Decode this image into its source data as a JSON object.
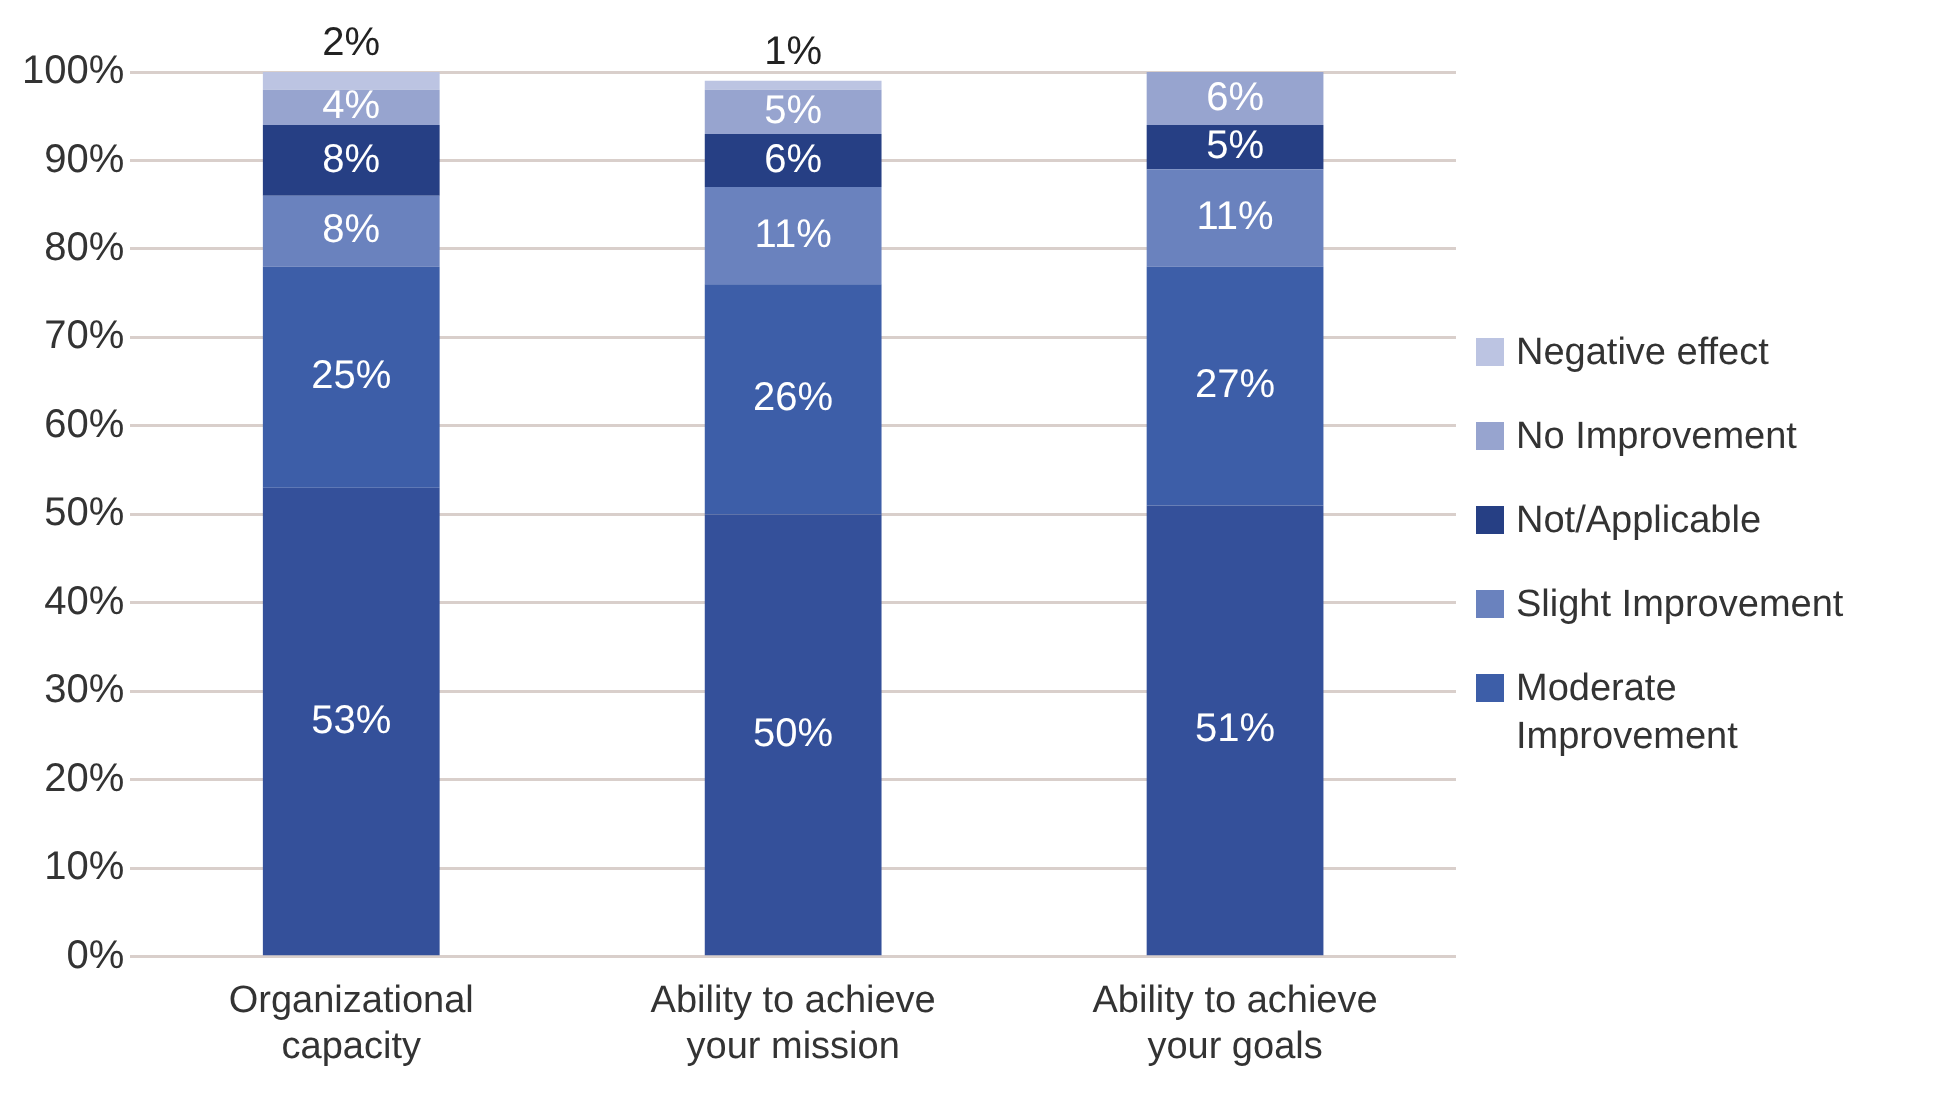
{
  "chart_data": {
    "type": "bar",
    "stacked": true,
    "categories": [
      "Organizational capacity",
      "Ability to achieve your mission",
      "Ability to achieve your goals"
    ],
    "series": [
      {
        "color": "#34509a",
        "values": [
          53,
          50,
          51
        ],
        "value_labels": [
          "53%",
          "50%",
          "51%"
        ]
      },
      {
        "name": "Moderate Improvement",
        "color": "#3d5ea8",
        "values": [
          25,
          26,
          27
        ],
        "value_labels": [
          "25%",
          "26%",
          "27%"
        ]
      },
      {
        "name": "Slight Improvement",
        "color": "#6a82be",
        "values": [
          8,
          11,
          11
        ],
        "value_labels": [
          "8%",
          "11%",
          "11%"
        ]
      },
      {
        "name": "Not/Applicable",
        "color": "#263f84",
        "values": [
          8,
          6,
          5
        ],
        "value_labels": [
          "8%",
          "6%",
          "5%"
        ]
      },
      {
        "name": "No Improvement",
        "color": "#97a4cf",
        "values": [
          4,
          5,
          6
        ],
        "value_labels": [
          "4%",
          "5%",
          "6%"
        ]
      },
      {
        "name": "Negative effect",
        "color": "#bcc4e2",
        "values": [
          2,
          1,
          null
        ],
        "value_labels": [
          "2%",
          "1%",
          null
        ]
      }
    ],
    "ylim": [
      0,
      100
    ],
    "yticks": [
      {
        "value": 0,
        "label": "0%"
      },
      {
        "value": 10,
        "label": "10%"
      },
      {
        "value": 20,
        "label": "20%"
      },
      {
        "value": 30,
        "label": "30%"
      },
      {
        "value": 40,
        "label": "40%"
      },
      {
        "value": 50,
        "label": "50%"
      },
      {
        "value": 60,
        "label": "60%"
      },
      {
        "value": 70,
        "label": "70%"
      },
      {
        "value": 80,
        "label": "80%"
      },
      {
        "value": 90,
        "label": "90%"
      },
      {
        "value": 100,
        "label": "100%"
      }
    ],
    "grid": "y",
    "legend": "right"
  }
}
